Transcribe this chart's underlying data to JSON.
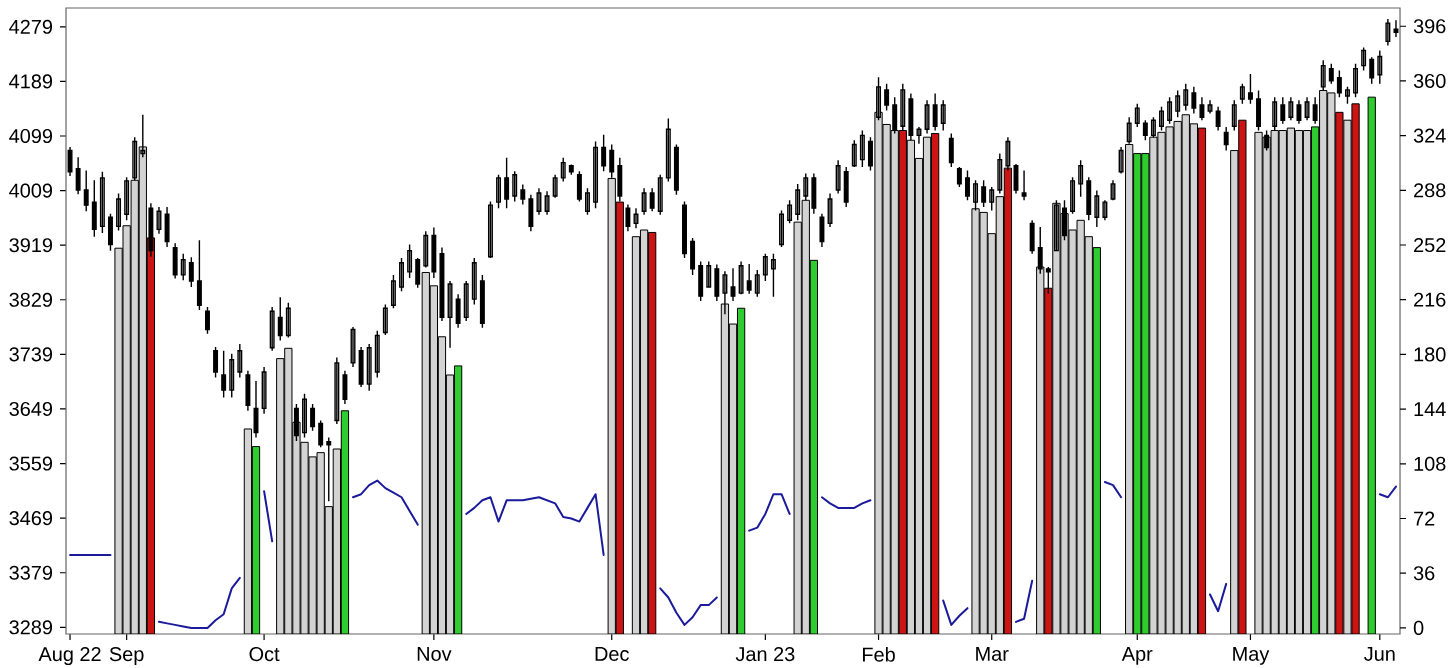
{
  "chart_data": {
    "type": "candlestick",
    "color": "#000000",
    "categories": [
      "Aug 22",
      null,
      null,
      null,
      null,
      null,
      null,
      "Sep",
      null,
      null,
      null,
      null,
      null,
      null,
      null,
      null,
      null,
      null,
      null,
      null,
      null,
      null,
      null,
      null,
      "Oct",
      null,
      null,
      null,
      null,
      null,
      null,
      null,
      null,
      null,
      null,
      null,
      null,
      null,
      null,
      null,
      null,
      null,
      null,
      null,
      null,
      "Nov",
      null,
      null,
      null,
      null,
      null,
      null,
      null,
      null,
      null,
      null,
      null,
      null,
      null,
      null,
      null,
      null,
      null,
      null,
      null,
      null,
      null,
      "Dec",
      null,
      null,
      null,
      null,
      null,
      null,
      null,
      null,
      null,
      null,
      null,
      null,
      null,
      null,
      null,
      null,
      null,
      null,
      "Jan 23",
      null,
      null,
      null,
      null,
      null,
      null,
      null,
      null,
      null,
      null,
      null,
      null,
      null,
      "Feb",
      null,
      null,
      null,
      null,
      null,
      null,
      null,
      null,
      null,
      null,
      null,
      null,
      null,
      "Mar",
      null,
      null,
      null,
      null,
      null,
      null,
      null,
      null,
      null,
      null,
      null,
      null,
      null,
      null,
      null,
      null,
      null,
      "Apr",
      null,
      null,
      null,
      null,
      null,
      null,
      null,
      null,
      null,
      null,
      null,
      null,
      null,
      "May",
      null,
      null,
      null,
      null,
      null,
      null,
      null,
      null,
      null,
      null,
      null,
      null,
      null,
      null,
      null,
      "Jun",
      null,
      null
    ],
    "ohlc": [
      [
        4075,
        4081,
        4033,
        4040
      ],
      [
        4045,
        4064,
        4003,
        4010
      ],
      [
        4010,
        4042,
        3975,
        3985
      ],
      [
        3990,
        4026,
        3933,
        3945
      ],
      [
        3950,
        4040,
        3939,
        4030
      ],
      [
        3965,
        3971,
        3910,
        3920
      ],
      [
        3950,
        4004,
        3943,
        3995
      ],
      [
        3970,
        4031,
        3960,
        4025
      ],
      [
        4030,
        4097,
        4026,
        4090
      ],
      [
        4070,
        4134,
        4064,
        4075
      ],
      [
        3980,
        3988,
        3900,
        3910
      ],
      [
        3945,
        3982,
        3938,
        3975
      ],
      [
        3970,
        3982,
        3916,
        3925
      ],
      [
        3915,
        3922,
        3864,
        3870
      ],
      [
        3870,
        3905,
        3861,
        3895
      ],
      [
        3890,
        3899,
        3850,
        3860
      ],
      [
        3860,
        3927,
        3812,
        3820
      ],
      [
        3810,
        3817,
        3773,
        3780
      ],
      [
        3745,
        3751,
        3701,
        3710
      ],
      [
        3705,
        3745,
        3668,
        3680
      ],
      [
        3680,
        3740,
        3668,
        3730
      ],
      [
        3710,
        3756,
        3701,
        3745
      ],
      [
        3705,
        3712,
        3646,
        3655
      ],
      [
        3650,
        3695,
        3602,
        3610
      ],
      [
        3650,
        3718,
        3641,
        3710
      ],
      [
        3750,
        3817,
        3745,
        3810
      ],
      [
        3800,
        3833,
        3762,
        3770
      ],
      [
        3770,
        3824,
        3767,
        3815
      ],
      [
        3650,
        3657,
        3596,
        3605
      ],
      [
        3610,
        3674,
        3602,
        3665
      ],
      [
        3650,
        3657,
        3613,
        3620
      ],
      [
        3625,
        3630,
        3586,
        3590
      ],
      [
        3595,
        3602,
        3497,
        3590
      ],
      [
        3630,
        3734,
        3624,
        3725
      ],
      [
        3705,
        3712,
        3657,
        3665
      ],
      [
        3725,
        3784,
        3718,
        3780
      ],
      [
        3745,
        3751,
        3685,
        3690
      ],
      [
        3690,
        3756,
        3679,
        3750
      ],
      [
        3710,
        3778,
        3701,
        3770
      ],
      [
        3775,
        3821,
        3771,
        3815
      ],
      [
        3820,
        3870,
        3815,
        3860
      ],
      [
        3850,
        3898,
        3843,
        3890
      ],
      [
        3875,
        3920,
        3865,
        3910
      ],
      [
        3895,
        3898,
        3849,
        3855
      ],
      [
        3885,
        3942,
        3882,
        3935
      ],
      [
        3935,
        3948,
        3865,
        3875
      ],
      [
        3905,
        3915,
        3794,
        3800
      ],
      [
        3800,
        3860,
        3750,
        3855
      ],
      [
        3830,
        3838,
        3783,
        3790
      ],
      [
        3800,
        3860,
        3794,
        3855
      ],
      [
        3830,
        3898,
        3821,
        3890
      ],
      [
        3860,
        3870,
        3783,
        3790
      ],
      [
        3900,
        3991,
        3898,
        3985
      ],
      [
        3990,
        4035,
        3980,
        4030
      ],
      [
        4030,
        4063,
        3980,
        3995
      ],
      [
        4000,
        4041,
        3991,
        4035
      ],
      [
        4010,
        4019,
        3986,
        3995
      ],
      [
        3995,
        4002,
        3942,
        3950
      ],
      [
        3975,
        4013,
        3969,
        4005
      ],
      [
        3975,
        4008,
        3969,
        4000
      ],
      [
        4000,
        4035,
        3997,
        4030
      ],
      [
        4030,
        4063,
        4024,
        4055
      ],
      [
        4050,
        4052,
        4035,
        4040
      ],
      [
        4035,
        4041,
        3991,
        3995
      ],
      [
        3975,
        4013,
        3969,
        4005
      ],
      [
        3990,
        4090,
        3980,
        4080
      ],
      [
        4080,
        4101,
        4041,
        4050
      ],
      [
        4075,
        4085,
        4030,
        4040
      ],
      [
        4050,
        4063,
        3991,
        4000
      ],
      [
        3980,
        3986,
        3942,
        3950
      ],
      [
        3955,
        3980,
        3947,
        3970
      ],
      [
        3975,
        4013,
        3969,
        4005
      ],
      [
        4005,
        4013,
        3975,
        3980
      ],
      [
        3975,
        4035,
        3969,
        4030
      ],
      [
        4030,
        4128,
        4024,
        4110
      ],
      [
        4080,
        4085,
        4002,
        4010
      ],
      [
        3985,
        3991,
        3898,
        3905
      ],
      [
        3925,
        3931,
        3870,
        3880
      ],
      [
        3885,
        3892,
        3827,
        3835
      ],
      [
        3850,
        3892,
        3849,
        3885
      ],
      [
        3880,
        3887,
        3827,
        3835
      ],
      [
        3840,
        3876,
        3805,
        3870
      ],
      [
        3850,
        3881,
        3827,
        3835
      ],
      [
        3840,
        3892,
        3838,
        3885
      ],
      [
        3860,
        3888,
        3839,
        3845
      ],
      [
        3840,
        3878,
        3834,
        3870
      ],
      [
        3870,
        3905,
        3860,
        3900
      ],
      [
        3880,
        3905,
        3834,
        3895
      ],
      [
        3920,
        3976,
        3916,
        3970
      ],
      [
        3960,
        3993,
        3955,
        3985
      ],
      [
        3970,
        4020,
        3960,
        4010
      ],
      [
        4000,
        4037,
        3993,
        4030
      ],
      [
        4030,
        4037,
        3971,
        3980
      ],
      [
        3965,
        3971,
        3916,
        3925
      ],
      [
        3955,
        4004,
        3949,
        3995
      ],
      [
        4010,
        4059,
        4004,
        4050
      ],
      [
        4040,
        4048,
        3982,
        3990
      ],
      [
        4050,
        4092,
        4048,
        4085
      ],
      [
        4060,
        4108,
        4048,
        4100
      ],
      [
        4090,
        4097,
        4042,
        4050
      ],
      [
        4130,
        4196,
        4125,
        4180
      ],
      [
        4175,
        4185,
        4141,
        4150
      ],
      [
        4150,
        4163,
        4103,
        4110
      ],
      [
        4115,
        4185,
        4108,
        4175
      ],
      [
        4160,
        4169,
        4092,
        4100
      ],
      [
        4100,
        4114,
        4086,
        4110
      ],
      [
        4110,
        4158,
        4103,
        4150
      ],
      [
        4150,
        4169,
        4108,
        4115
      ],
      [
        4120,
        4158,
        4108,
        4150
      ],
      [
        4095,
        4103,
        4048,
        4055
      ],
      [
        4045,
        4048,
        4015,
        4020
      ],
      [
        4030,
        4042,
        3993,
        4000
      ],
      [
        3990,
        4026,
        3976,
        4020
      ],
      [
        4015,
        4026,
        3982,
        3990
      ],
      [
        3990,
        4015,
        3976,
        4010
      ],
      [
        4010,
        4070,
        4004,
        4060
      ],
      [
        4050,
        4097,
        4042,
        4090
      ],
      [
        4050,
        4053,
        4004,
        4010
      ],
      [
        4005,
        4042,
        3993,
        4000
      ],
      [
        3955,
        3960,
        3905,
        3910
      ],
      [
        3915,
        3949,
        3872,
        3880
      ],
      [
        3880,
        3883,
        3839,
        3875
      ],
      [
        3910,
        3993,
        3910,
        3985
      ],
      [
        3980,
        3993,
        3927,
        3935
      ],
      [
        3975,
        4031,
        3971,
        4025
      ],
      [
        4020,
        4059,
        3999,
        4050
      ],
      [
        4025,
        4031,
        3960,
        3970
      ],
      [
        3965,
        4009,
        3949,
        4000
      ],
      [
        3965,
        3993,
        3960,
        3990
      ],
      [
        3995,
        4026,
        3993,
        4020
      ],
      [
        4040,
        4081,
        4037,
        4075
      ],
      [
        4090,
        4130,
        4086,
        4120
      ],
      [
        4120,
        4152,
        4114,
        4145
      ],
      [
        4120,
        4125,
        4092,
        4100
      ],
      [
        4100,
        4130,
        4097,
        4125
      ],
      [
        4115,
        4147,
        4108,
        4140
      ],
      [
        4125,
        4163,
        4119,
        4155
      ],
      [
        4140,
        4174,
        4130,
        4165
      ],
      [
        4150,
        4185,
        4141,
        4175
      ],
      [
        4170,
        4180,
        4136,
        4145
      ],
      [
        4150,
        4163,
        4125,
        4130
      ],
      [
        4140,
        4158,
        4136,
        4150
      ],
      [
        4140,
        4147,
        4108,
        4115
      ],
      [
        4105,
        4114,
        4075,
        4085
      ],
      [
        4115,
        4158,
        4108,
        4150
      ],
      [
        4160,
        4185,
        4152,
        4180
      ],
      [
        4170,
        4201,
        4152,
        4160
      ],
      [
        4160,
        4174,
        4108,
        4115
      ],
      [
        4100,
        4108,
        4075,
        4080
      ],
      [
        4115,
        4163,
        4108,
        4155
      ],
      [
        4150,
        4163,
        4119,
        4125
      ],
      [
        4130,
        4163,
        4125,
        4155
      ],
      [
        4150,
        4158,
        4119,
        4125
      ],
      [
        4130,
        4163,
        4125,
        4155
      ],
      [
        4150,
        4163,
        4119,
        4125
      ],
      [
        4180,
        4224,
        4174,
        4215
      ],
      [
        4210,
        4218,
        4185,
        4190
      ],
      [
        4195,
        4207,
        4163,
        4170
      ],
      [
        4165,
        4180,
        4152,
        4175
      ],
      [
        4170,
        4218,
        4163,
        4210
      ],
      [
        4215,
        4245,
        4207,
        4240
      ],
      [
        4225,
        4229,
        4185,
        4195
      ],
      [
        4200,
        4240,
        4185,
        4230
      ],
      [
        4255,
        4292,
        4248,
        4285
      ],
      [
        4275,
        4290,
        4262,
        4270
      ]
    ],
    "series": [
      {
        "type": "bar",
        "values": [
          null,
          null,
          null,
          null,
          null,
          null,
          3914,
          3951,
          4026,
          4081,
          3931,
          null,
          null,
          null,
          null,
          null,
          null,
          null,
          null,
          null,
          null,
          null,
          3616,
          3587,
          null,
          null,
          3732,
          3749,
          3627,
          3594,
          3570,
          3577,
          3488,
          3583,
          3646,
          null,
          null,
          null,
          null,
          null,
          null,
          null,
          null,
          null,
          3874,
          3852,
          3768,
          3705,
          3720,
          null,
          null,
          null,
          null,
          null,
          null,
          null,
          null,
          null,
          null,
          null,
          null,
          null,
          null,
          null,
          null,
          null,
          null,
          4029,
          3990,
          null,
          3933,
          3944,
          3940,
          null,
          null,
          null,
          null,
          null,
          null,
          null,
          null,
          3822,
          3789,
          3815,
          null,
          null,
          null,
          null,
          null,
          null,
          3957,
          3993,
          3894,
          null,
          null,
          null,
          null,
          null,
          null,
          null,
          4138,
          4118,
          4108,
          4108,
          4092,
          4062,
          4097,
          4103,
          null,
          null,
          null,
          null,
          3979,
          3973,
          3938,
          3999,
          4046,
          null,
          null,
          null,
          3883,
          3848,
          3988,
          3971,
          3944,
          3960,
          3933,
          3915,
          null,
          null,
          null,
          4085,
          4070,
          4070,
          4097,
          4105,
          4114,
          4123,
          4134,
          4119,
          4112,
          null,
          null,
          null,
          4075,
          4125,
          null,
          4105,
          4097,
          4108,
          4108,
          4112,
          4108,
          4108,
          4114,
          4174,
          4170,
          4138,
          4125,
          4152,
          null,
          4163,
          null,
          null,
          null
        ],
        "colors": [
          null,
          null,
          null,
          null,
          null,
          null,
          "#d3d3d3",
          "#d3d3d3",
          "#d3d3d3",
          "#d3d3d3",
          "#cc1414",
          null,
          null,
          null,
          null,
          null,
          null,
          null,
          null,
          null,
          null,
          null,
          "#d3d3d3",
          "#2ecc2e",
          null,
          null,
          "#d3d3d3",
          "#d3d3d3",
          "#d3d3d3",
          "#d3d3d3",
          "#d3d3d3",
          "#d3d3d3",
          "#d3d3d3",
          "#d3d3d3",
          "#2ecc2e",
          null,
          null,
          null,
          null,
          null,
          null,
          null,
          null,
          null,
          "#d3d3d3",
          "#d3d3d3",
          "#d3d3d3",
          "#d3d3d3",
          "#2ecc2e",
          null,
          null,
          null,
          null,
          null,
          null,
          null,
          null,
          null,
          null,
          null,
          null,
          null,
          null,
          null,
          null,
          null,
          null,
          "#d3d3d3",
          "#cc1414",
          null,
          "#d3d3d3",
          "#d3d3d3",
          "#cc1414",
          null,
          null,
          null,
          null,
          null,
          null,
          null,
          null,
          "#d3d3d3",
          "#d3d3d3",
          "#2ecc2e",
          null,
          null,
          null,
          null,
          null,
          null,
          "#d3d3d3",
          "#d3d3d3",
          "#2ecc2e",
          null,
          null,
          null,
          null,
          null,
          null,
          null,
          "#d3d3d3",
          "#d3d3d3",
          "#d3d3d3",
          "#cc1414",
          "#d3d3d3",
          "#d3d3d3",
          "#d3d3d3",
          "#cc1414",
          null,
          null,
          null,
          null,
          "#d3d3d3",
          "#d3d3d3",
          "#d3d3d3",
          "#d3d3d3",
          "#cc1414",
          null,
          null,
          null,
          "#d3d3d3",
          "#cc1414",
          "#d3d3d3",
          "#d3d3d3",
          "#d3d3d3",
          "#d3d3d3",
          "#d3d3d3",
          "#2ecc2e",
          null,
          null,
          null,
          "#d3d3d3",
          "#2ecc2e",
          "#2ecc2e",
          "#d3d3d3",
          "#d3d3d3",
          "#d3d3d3",
          "#d3d3d3",
          "#d3d3d3",
          "#d3d3d3",
          "#cc1414",
          null,
          null,
          null,
          "#d3d3d3",
          "#cc1414",
          null,
          "#d3d3d3",
          "#d3d3d3",
          "#d3d3d3",
          "#d3d3d3",
          "#d3d3d3",
          "#d3d3d3",
          "#d3d3d3",
          "#2ecc2e",
          "#d3d3d3",
          "#d3d3d3",
          "#cc1414",
          "#d3d3d3",
          "#cc1414",
          null,
          "#2ecc2e",
          null,
          null,
          null
        ]
      },
      {
        "type": "line",
        "axis": "y2",
        "color": "#1a1a9a",
        "values": [
          48,
          48,
          48,
          48,
          48,
          48,
          null,
          null,
          null,
          null,
          null,
          4,
          3,
          2,
          1,
          0,
          0,
          0,
          5,
          9,
          26,
          33,
          null,
          null,
          90,
          57,
          null,
          null,
          null,
          null,
          null,
          null,
          null,
          null,
          null,
          86,
          88,
          94,
          97,
          92,
          89,
          86,
          77,
          68,
          null,
          null,
          null,
          null,
          null,
          75,
          79,
          84,
          86,
          70,
          84,
          84,
          84,
          85,
          86,
          84,
          82,
          73,
          72,
          70,
          79,
          88,
          48,
          null,
          null,
          null,
          null,
          null,
          null,
          26,
          20,
          10,
          2,
          7,
          15,
          15,
          20,
          null,
          null,
          null,
          64,
          66,
          75,
          88,
          88,
          75,
          null,
          null,
          null,
          86,
          82,
          79,
          79,
          79,
          82,
          84,
          null,
          null,
          null,
          null,
          null,
          null,
          null,
          null,
          18,
          2,
          8,
          13,
          null,
          null,
          null,
          null,
          null,
          4,
          6,
          31,
          null,
          null,
          null,
          null,
          null,
          null,
          null,
          null,
          96,
          94,
          86,
          null,
          null,
          null,
          null,
          null,
          null,
          null,
          null,
          null,
          null,
          22,
          11,
          29,
          null,
          null,
          null,
          null,
          null,
          null,
          null,
          null,
          null,
          null,
          null,
          null,
          null,
          null,
          null,
          null,
          null,
          null,
          88,
          86,
          93
        ]
      }
    ],
    "ylim": [
      3278,
      4310
    ],
    "y2lim": [
      -4,
      408
    ],
    "yticks": [
      3289,
      3379,
      3469,
      3559,
      3649,
      3739,
      3829,
      3919,
      4009,
      4099,
      4189,
      4279
    ],
    "y2ticks": [
      0,
      36,
      72,
      108,
      144,
      180,
      216,
      252,
      288,
      324,
      360,
      396
    ]
  }
}
